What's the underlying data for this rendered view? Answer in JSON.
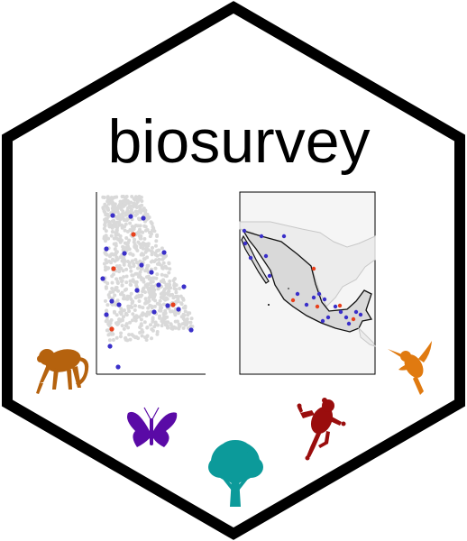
{
  "title": "biosurvey",
  "colors": {
    "border": "#000000",
    "background": "#ffffff",
    "cloud_points": "#d9d9d9",
    "blue_points": "#3a2fc9",
    "red_points": "#e8401c",
    "map_land": "#d9d9d9",
    "map_ocean": "#f5f5f5",
    "monkey": "#b5620e",
    "butterfly": "#5a0aa6",
    "tree": "#0c9a9a",
    "frog": "#9a0d0d",
    "hummingbird": "#e07a10"
  },
  "icons": [
    "monkey-icon",
    "butterfly-icon",
    "tree-icon",
    "frog-icon",
    "hummingbird-icon"
  ]
}
